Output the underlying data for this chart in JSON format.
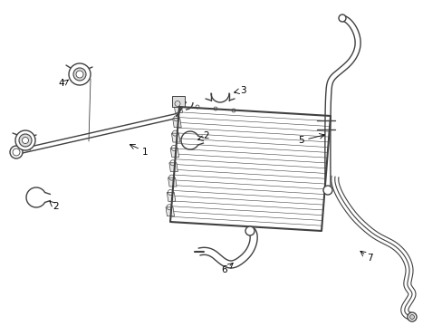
{
  "bg_color": "#ffffff",
  "line_color": "#404040",
  "label_color": "#000000",
  "label_fontsize": 7.5,
  "fig_width": 4.89,
  "fig_height": 3.6,
  "dpi": 100
}
